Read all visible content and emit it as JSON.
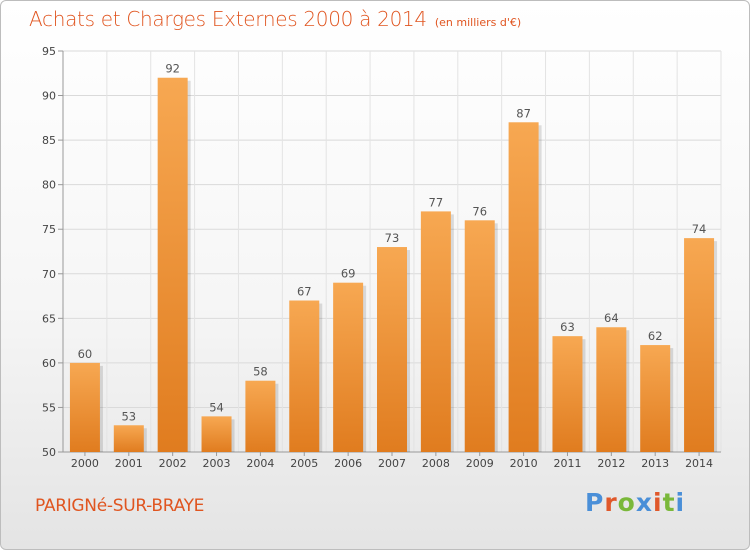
{
  "header": {
    "title": "Achats et Charges Externes 2000 à 2014",
    "unit": "(en milliers d'€)"
  },
  "footer": {
    "commune": "PARIGNé-SUR-BRAYE",
    "logo": "Proxiti"
  },
  "colors": {
    "title": "#e05520",
    "bar_light": "#f7a852",
    "bar_dark": "#e07c1f",
    "logo_letters": [
      "#4a8fd8",
      "#e0582a",
      "#7ab83a",
      "#4a8fd8",
      "#e0582a",
      "#7ab83a",
      "#4a8fd8"
    ]
  },
  "chart_data": {
    "type": "bar",
    "categories": [
      "2000",
      "2001",
      "2002",
      "2003",
      "2004",
      "2005",
      "2006",
      "2007",
      "2008",
      "2009",
      "2010",
      "2011",
      "2012",
      "2013",
      "2014"
    ],
    "values": [
      60,
      53,
      92,
      54,
      58,
      67,
      69,
      73,
      77,
      76,
      87,
      63,
      64,
      62,
      74
    ],
    "title": "Achats et Charges Externes 2000 à 2014",
    "xlabel": "",
    "ylabel": "",
    "ylim": [
      50,
      95
    ],
    "yticks": [
      50,
      55,
      60,
      65,
      70,
      75,
      80,
      85,
      90,
      95
    ],
    "grid": true,
    "legend": "none"
  }
}
